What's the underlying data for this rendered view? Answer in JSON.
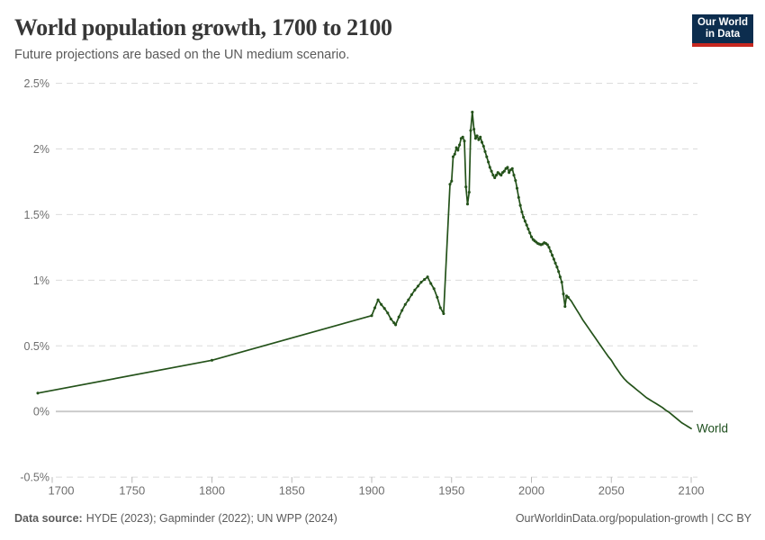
{
  "header": {
    "title": "World population growth, 1700 to 2100",
    "subtitle": "Future projections are based on the UN medium scenario.",
    "logo": {
      "line1": "Our World",
      "line2": "in Data"
    }
  },
  "footer": {
    "source_label": "Data source:",
    "source_text": "HYDE (2023); Gapminder (2022); UN WPP (2024)",
    "link_text": "OurWorldinData.org/population-growth | CC BY"
  },
  "colors": {
    "series_line": "#24521a",
    "series_label": "#1d4e1d",
    "grid": "#dcdcdc",
    "zero_line": "#c9c9c9",
    "tick": "#b8b8b8",
    "axis_text": "#6e6e6e",
    "title_text": "#373737",
    "muted_text": "#5b5b5b",
    "logo_bg": "#0c2d4e",
    "logo_accent": "#c62820"
  },
  "chart_data": {
    "type": "line",
    "title": "World population growth, 1700 to 2100",
    "subtitle": "Future projections are based on the UN medium scenario.",
    "xlabel": "",
    "ylabel": "",
    "x_axis": {
      "ticks": [
        1700,
        1750,
        1800,
        1850,
        1900,
        1950,
        2000,
        2050,
        2100
      ],
      "range": [
        1688,
        2106
      ]
    },
    "y_axis": {
      "unit": "%",
      "range": [
        -0.5,
        2.5
      ],
      "ticks": [
        {
          "value": 2.5,
          "label": "2.5%"
        },
        {
          "value": 2.0,
          "label": "2%"
        },
        {
          "value": 1.5,
          "label": "1.5%"
        },
        {
          "value": 1.0,
          "label": "1%"
        },
        {
          "value": 0.5,
          "label": "0.5%"
        },
        {
          "value": 0.0,
          "label": "0%"
        },
        {
          "value": -0.5,
          "label": "-0.5%"
        }
      ]
    },
    "grid": "horizontal-dashed",
    "legend": "end-of-line-label",
    "series": [
      {
        "name": "World",
        "color": "#24521a",
        "markers_until_year": 2023,
        "points": [
          [
            1691,
            0.14
          ],
          [
            1800,
            0.39
          ],
          [
            1900,
            0.73
          ],
          [
            1902,
            0.79
          ],
          [
            1904,
            0.85
          ],
          [
            1906,
            0.815
          ],
          [
            1908,
            0.785
          ],
          [
            1910,
            0.75
          ],
          [
            1912,
            0.705
          ],
          [
            1914,
            0.675
          ],
          [
            1915,
            0.66
          ],
          [
            1917,
            0.72
          ],
          [
            1919,
            0.77
          ],
          [
            1921,
            0.815
          ],
          [
            1923,
            0.85
          ],
          [
            1925,
            0.89
          ],
          [
            1927,
            0.925
          ],
          [
            1929,
            0.955
          ],
          [
            1931,
            0.985
          ],
          [
            1933,
            1.005
          ],
          [
            1935,
            1.025
          ],
          [
            1937,
            0.975
          ],
          [
            1939,
            0.935
          ],
          [
            1941,
            0.87
          ],
          [
            1943,
            0.79
          ],
          [
            1945,
            0.745
          ],
          [
            1949,
            1.73
          ],
          [
            1950,
            1.755
          ],
          [
            1951,
            1.94
          ],
          [
            1952,
            1.96
          ],
          [
            1953,
            2.01
          ],
          [
            1954,
            1.99
          ],
          [
            1955,
            2.03
          ],
          [
            1956,
            2.08
          ],
          [
            1957,
            2.09
          ],
          [
            1958,
            2.06
          ],
          [
            1959,
            1.71
          ],
          [
            1960,
            1.58
          ],
          [
            1961,
            1.67
          ],
          [
            1962,
            2.14
          ],
          [
            1963,
            2.28
          ],
          [
            1964,
            2.15
          ],
          [
            1965,
            2.08
          ],
          [
            1966,
            2.1
          ],
          [
            1967,
            2.07
          ],
          [
            1968,
            2.09
          ],
          [
            1969,
            2.05
          ],
          [
            1970,
            2.02
          ],
          [
            1971,
            1.98
          ],
          [
            1972,
            1.94
          ],
          [
            1973,
            1.9
          ],
          [
            1974,
            1.86
          ],
          [
            1975,
            1.83
          ],
          [
            1976,
            1.8
          ],
          [
            1977,
            1.78
          ],
          [
            1978,
            1.8
          ],
          [
            1979,
            1.82
          ],
          [
            1980,
            1.81
          ],
          [
            1981,
            1.8
          ],
          [
            1982,
            1.82
          ],
          [
            1983,
            1.83
          ],
          [
            1984,
            1.85
          ],
          [
            1985,
            1.86
          ],
          [
            1986,
            1.82
          ],
          [
            1987,
            1.84
          ],
          [
            1988,
            1.85
          ],
          [
            1989,
            1.8
          ],
          [
            1990,
            1.76
          ],
          [
            1991,
            1.7
          ],
          [
            1992,
            1.63
          ],
          [
            1993,
            1.57
          ],
          [
            1994,
            1.52
          ],
          [
            1995,
            1.48
          ],
          [
            1996,
            1.45
          ],
          [
            1997,
            1.42
          ],
          [
            1998,
            1.39
          ],
          [
            1999,
            1.36
          ],
          [
            2000,
            1.33
          ],
          [
            2001,
            1.31
          ],
          [
            2002,
            1.3
          ],
          [
            2003,
            1.29
          ],
          [
            2004,
            1.28
          ],
          [
            2005,
            1.275
          ],
          [
            2006,
            1.27
          ],
          [
            2007,
            1.275
          ],
          [
            2008,
            1.285
          ],
          [
            2009,
            1.28
          ],
          [
            2010,
            1.27
          ],
          [
            2011,
            1.25
          ],
          [
            2012,
            1.22
          ],
          [
            2013,
            1.19
          ],
          [
            2014,
            1.16
          ],
          [
            2015,
            1.13
          ],
          [
            2016,
            1.1
          ],
          [
            2017,
            1.065
          ],
          [
            2018,
            1.025
          ],
          [
            2019,
            0.985
          ],
          [
            2020,
            0.895
          ],
          [
            2021,
            0.8
          ],
          [
            2022,
            0.88
          ],
          [
            2023,
            0.87
          ],
          [
            2024,
            0.855
          ],
          [
            2025,
            0.84
          ],
          [
            2026,
            0.82
          ],
          [
            2027,
            0.8
          ],
          [
            2028,
            0.78
          ],
          [
            2029,
            0.76
          ],
          [
            2030,
            0.74
          ],
          [
            2032,
            0.7
          ],
          [
            2034,
            0.665
          ],
          [
            2036,
            0.63
          ],
          [
            2038,
            0.595
          ],
          [
            2040,
            0.56
          ],
          [
            2042,
            0.525
          ],
          [
            2044,
            0.49
          ],
          [
            2046,
            0.455
          ],
          [
            2048,
            0.42
          ],
          [
            2050,
            0.39
          ],
          [
            2052,
            0.35
          ],
          [
            2054,
            0.315
          ],
          [
            2056,
            0.28
          ],
          [
            2058,
            0.25
          ],
          [
            2060,
            0.225
          ],
          [
            2062,
            0.205
          ],
          [
            2064,
            0.185
          ],
          [
            2066,
            0.165
          ],
          [
            2068,
            0.145
          ],
          [
            2070,
            0.125
          ],
          [
            2072,
            0.105
          ],
          [
            2074,
            0.09
          ],
          [
            2076,
            0.075
          ],
          [
            2078,
            0.06
          ],
          [
            2080,
            0.045
          ],
          [
            2082,
            0.03
          ],
          [
            2084,
            0.01
          ],
          [
            2086,
            -0.005
          ],
          [
            2088,
            -0.025
          ],
          [
            2090,
            -0.045
          ],
          [
            2092,
            -0.065
          ],
          [
            2094,
            -0.085
          ],
          [
            2096,
            -0.1
          ],
          [
            2098,
            -0.115
          ],
          [
            2100,
            -0.13
          ]
        ]
      }
    ]
  }
}
